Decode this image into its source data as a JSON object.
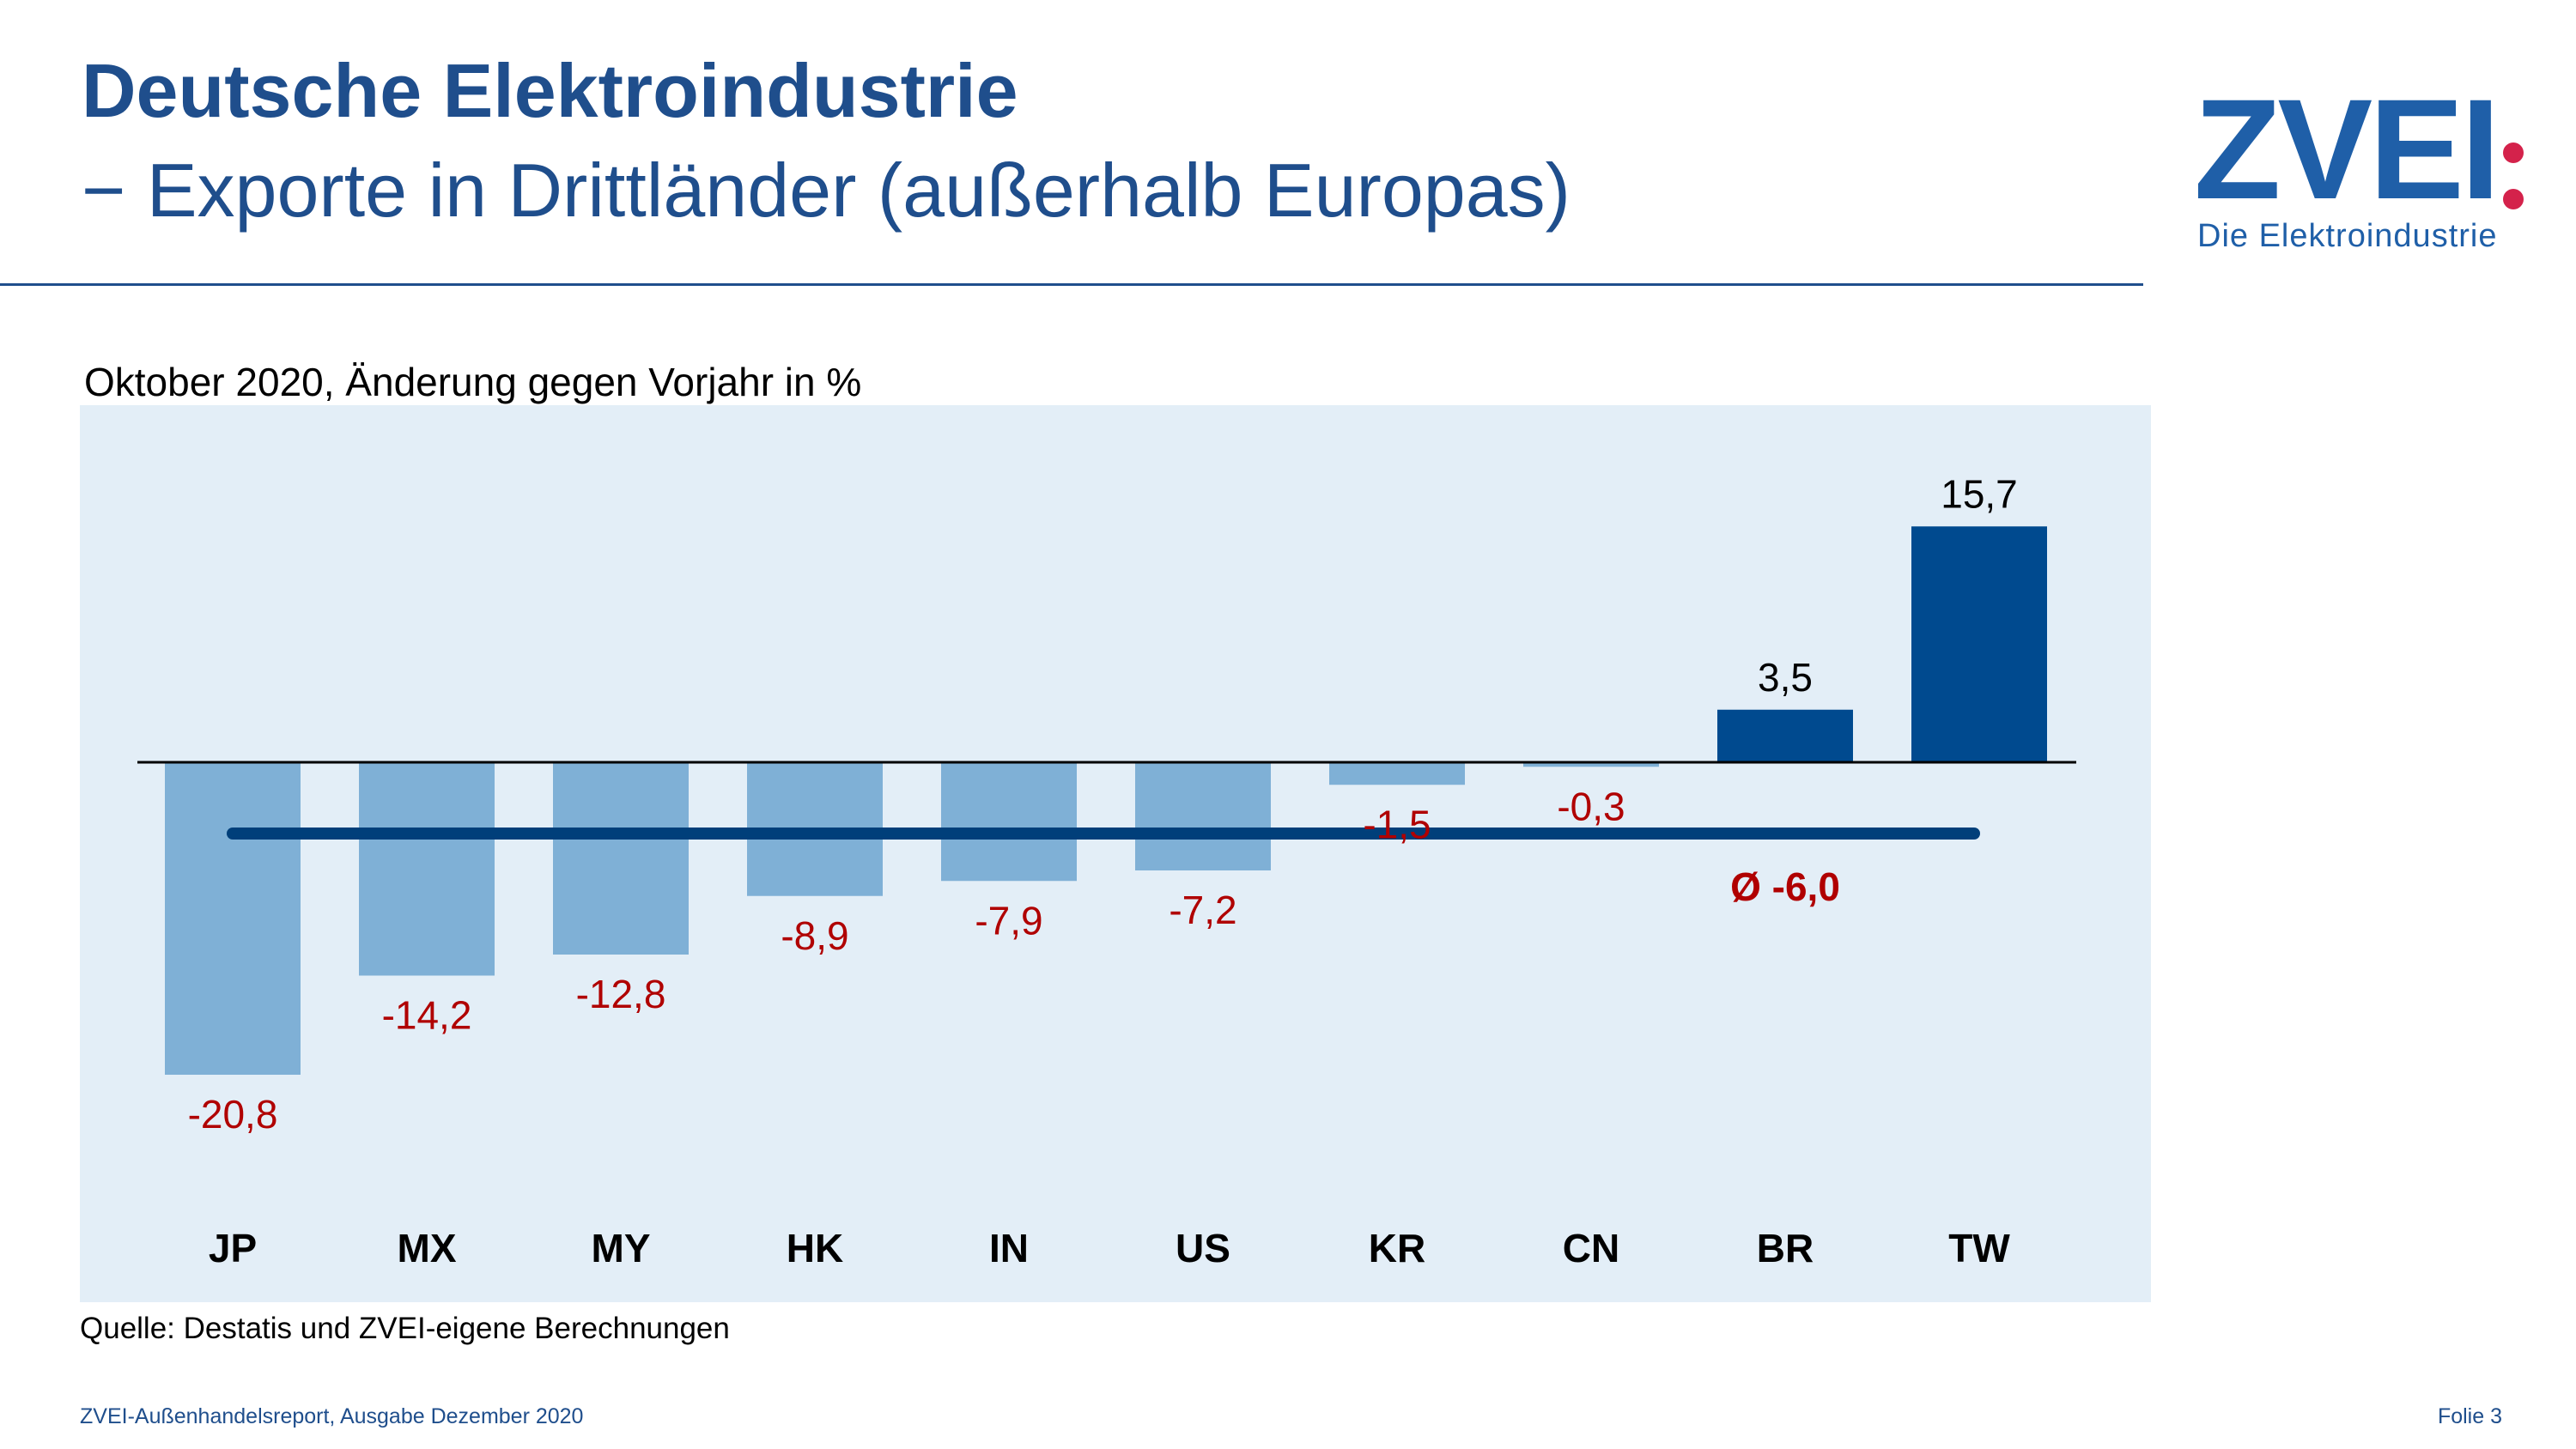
{
  "header": {
    "title": "Deutsche Elektroindustrie",
    "subtitle": "− Exporte in Drittländer (außerhalb Europas)"
  },
  "logo": {
    "word": "ZVEI",
    "tagline": "Die Elektroindustrie",
    "accent_color": "#d4224b",
    "brand_color": "#1f5fa8"
  },
  "chart_caption": "Oktober 2020, Änderung gegen Vorjahr in %",
  "chart_data": {
    "type": "bar",
    "categories": [
      "JP",
      "MX",
      "MY",
      "HK",
      "IN",
      "US",
      "KR",
      "CN",
      "BR",
      "TW"
    ],
    "values": [
      -20.8,
      -14.2,
      -12.8,
      -8.9,
      -7.9,
      -7.2,
      -1.5,
      -0.3,
      3.5,
      15.7
    ],
    "value_labels": [
      "-20,8",
      "-14,2",
      "-12,8",
      "-8,9",
      "-7,9",
      "-7,2",
      "-1,5",
      "-0,3",
      "3,5",
      "15,7"
    ],
    "average": {
      "value": -6.0,
      "label": "Ø -6,0"
    },
    "colors": {
      "negative_bar": "#7fb0d6",
      "positive_bar": "#004a8f",
      "average_line": "#003f7a",
      "negative_label": "#b00000",
      "positive_label": "#000000",
      "plot_background": "#e3eef7"
    },
    "title": "",
    "xlabel": "",
    "ylabel": "",
    "ylim": [
      -24,
      21
    ],
    "grid": false,
    "legend": "none"
  },
  "source": "Quelle: Destatis und ZVEI-eigene Berechnungen",
  "footer": {
    "left": "ZVEI-Außenhandelsreport, Ausgabe Dezember 2020",
    "right": "Folie 3"
  }
}
